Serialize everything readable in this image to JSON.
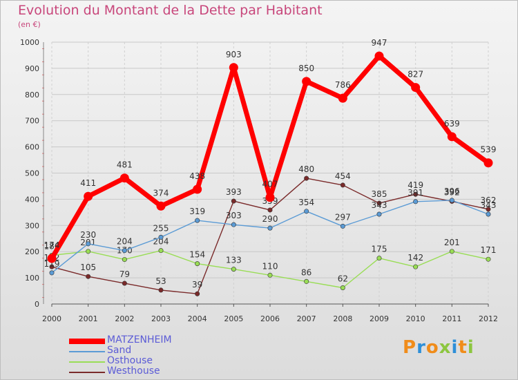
{
  "title": "Evolution du Montant de la Dette par Habitant",
  "subtitle": "(en €)",
  "logo": {
    "text": "Proxiti",
    "colors": [
      "#f08c1a",
      "#2e8fd8",
      "#f08c1a",
      "#8cc63f",
      "#2e8fd8",
      "#f08c1a",
      "#8cc63f"
    ]
  },
  "chart_data": {
    "type": "line",
    "x": [
      "2000",
      "2001",
      "2002",
      "2003",
      "2004",
      "2005",
      "2006",
      "2007",
      "2008",
      "2009",
      "2010",
      "2011",
      "2012"
    ],
    "ylim": [
      0,
      1000
    ],
    "yticks": [
      "0",
      "100",
      "200",
      "300",
      "400",
      "500",
      "600",
      "700",
      "800",
      "900",
      "1000"
    ],
    "grid": true,
    "legend_position": "bottom-left",
    "series": [
      {
        "name": "MATZENHEIM",
        "color": "#ff0000",
        "values": [
          174,
          411,
          481,
          374,
          438,
          903,
          407,
          850,
          786,
          947,
          827,
          639,
          539
        ],
        "labels": [
          "174",
          "411",
          "481",
          "374",
          "438",
          "903",
          "407",
          "850",
          "786",
          "947",
          "827",
          "639",
          "539"
        ]
      },
      {
        "name": "Sand",
        "color": "#5b9bd5",
        "values": [
          119,
          230,
          204,
          255,
          319,
          303,
          290,
          354,
          297,
          343,
          391,
          396,
          343
        ],
        "labels": [
          "119",
          "230",
          "204",
          "255",
          "319",
          "303",
          "290",
          "354",
          "297",
          "343",
          "391",
          "396",
          "343"
        ]
      },
      {
        "name": "Osthouse",
        "color": "#99dd55",
        "values": [
          186,
          201,
          170,
          204,
          154,
          133,
          110,
          86,
          62,
          175,
          142,
          201,
          171
        ],
        "labels": [
          "186",
          "201",
          "170",
          "204",
          "154",
          "133",
          "110",
          "86",
          "62",
          "175",
          "142",
          "201",
          "171"
        ]
      },
      {
        "name": "Westhouse",
        "color": "#7a2a2a",
        "values": [
          142,
          105,
          79,
          53,
          39,
          393,
          359,
          480,
          454,
          385,
          419,
          392,
          362
        ],
        "labels": [
          "142",
          "105",
          "79",
          "53",
          "39",
          "393",
          "359",
          "480",
          "454",
          "385",
          "419",
          "392",
          "362"
        ]
      }
    ]
  }
}
